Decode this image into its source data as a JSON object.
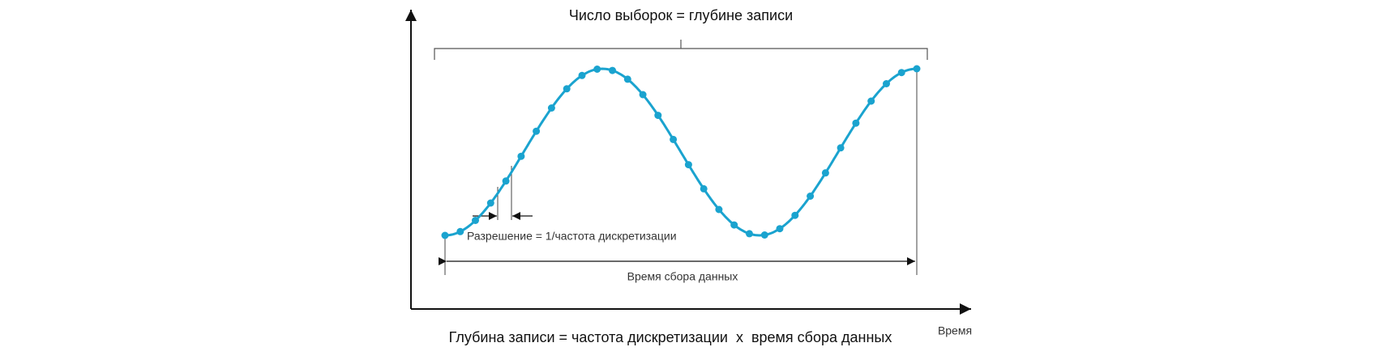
{
  "header": {
    "title": "Число выборок = глубине записи"
  },
  "annotations": {
    "resolution": "Разрешение = 1/частота дискретизации",
    "acquisition_time": "Время сбора данных"
  },
  "axis": {
    "x_label": "Время"
  },
  "footer": {
    "formula": "Глубина записи = частота дискретизации  x  время сбора данных"
  }
}
